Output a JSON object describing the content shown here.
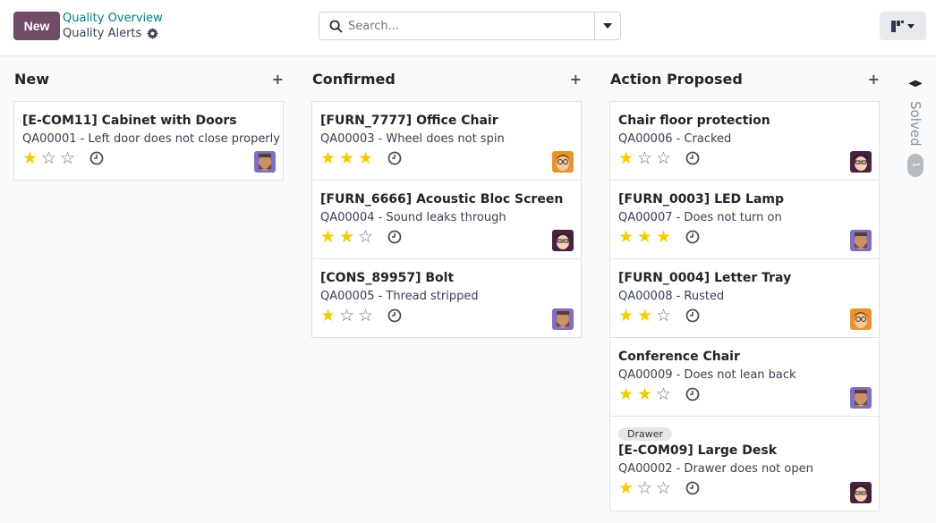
{
  "header": {
    "new_label": "New",
    "breadcrumb_parent": "Quality Overview",
    "breadcrumb_current": "Quality Alerts",
    "search_placeholder": "Search..."
  },
  "colors": {
    "brand": "#714b67",
    "link": "#017e84",
    "star": "#f3cc00"
  },
  "columns": [
    {
      "title": "New",
      "cards": [
        {
          "title": "[E-COM11] Cabinet with Doors",
          "subtitle": "QA00001 - Left door does not close properly",
          "rating": 1,
          "avatar": "bearded"
        }
      ]
    },
    {
      "title": "Confirmed",
      "cards": [
        {
          "title": "[FURN_7777] Office Chair",
          "subtitle": "QA00003 - Wheel does not spin",
          "rating": 3,
          "avatar": "orange-glasses"
        },
        {
          "title": "[FURN_6666] Acoustic Bloc Screen",
          "subtitle": "QA00004 - Sound leaks through",
          "rating": 2,
          "avatar": "dark-glasses"
        },
        {
          "title": "[CONS_89957] Bolt",
          "subtitle": "QA00005 - Thread stripped",
          "rating": 1,
          "avatar": "bearded"
        }
      ]
    },
    {
      "title": "Action Proposed",
      "cards": [
        {
          "title": "Chair floor protection",
          "subtitle": "QA00006 - Cracked",
          "rating": 1,
          "avatar": "dark-glasses"
        },
        {
          "title": "[FURN_0003] LED Lamp",
          "subtitle": "QA00007 - Does not turn on",
          "rating": 3,
          "avatar": "bearded"
        },
        {
          "title": "[FURN_0004] Letter Tray",
          "subtitle": "QA00008 - Rusted",
          "rating": 2,
          "avatar": "orange-glasses"
        },
        {
          "title": "Conference Chair",
          "subtitle": "QA00009 - Does not lean back",
          "rating": 2,
          "avatar": "bearded"
        },
        {
          "tag": "Drawer",
          "title": "[E-COM09] Large Desk",
          "subtitle": "QA00002 - Drawer does not open",
          "rating": 1,
          "avatar": "dark-glasses"
        }
      ]
    }
  ],
  "folded_column": {
    "title": "Solved",
    "count": "1"
  }
}
